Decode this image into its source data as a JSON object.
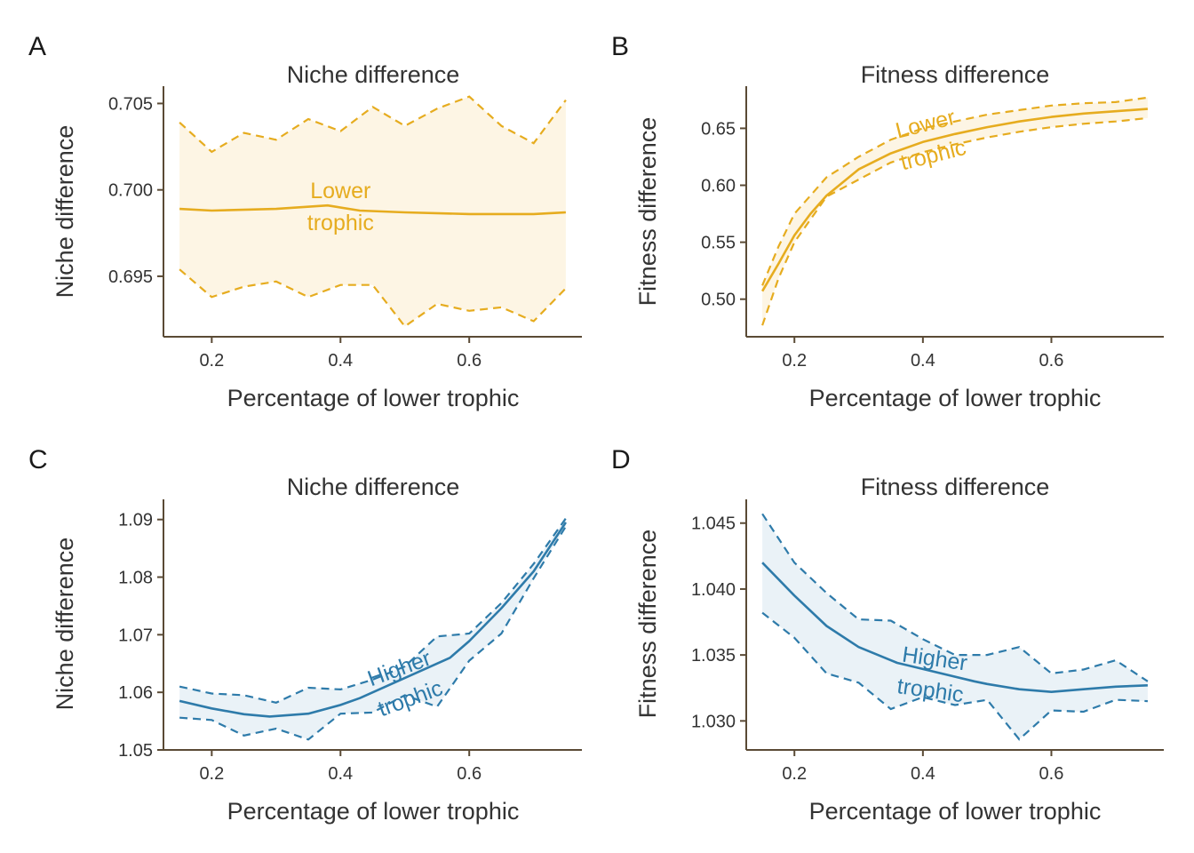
{
  "chart_data": [
    {
      "panel": "A",
      "type": "line",
      "title": "Niche difference",
      "xlabel": "Percentage of lower trophic",
      "ylabel": "Niche difference",
      "xlim": [
        0.125,
        0.775
      ],
      "ylim": [
        0.6915,
        0.706
      ],
      "xticks": [
        0.2,
        0.4,
        0.6
      ],
      "xtick_labels": [
        "0.2",
        "0.4",
        "0.6"
      ],
      "yticks": [
        0.695,
        0.7,
        0.705
      ],
      "ytick_labels": [
        "0.695",
        "0.700",
        "0.705"
      ],
      "color": "#E6AC1F",
      "fill_color": "#FDF5E4",
      "label_lines": [
        "Lower",
        "trophic"
      ],
      "label_at": [
        0.4,
        0.699
      ],
      "label_angle": 0,
      "mean": {
        "x": [
          0.15,
          0.2,
          0.3,
          0.38,
          0.43,
          0.5,
          0.6,
          0.7,
          0.75
        ],
        "y": [
          0.6989,
          0.6988,
          0.6989,
          0.6991,
          0.6988,
          0.6987,
          0.6986,
          0.6986,
          0.6987
        ]
      },
      "upper": {
        "x": [
          0.15,
          0.2,
          0.25,
          0.3,
          0.35,
          0.4,
          0.45,
          0.5,
          0.55,
          0.6,
          0.65,
          0.7,
          0.75
        ],
        "y": [
          0.7039,
          0.7022,
          0.7033,
          0.7029,
          0.7041,
          0.7034,
          0.7048,
          0.7037,
          0.7047,
          0.7054,
          0.7037,
          0.7027,
          0.7052
        ]
      },
      "lower": {
        "x": [
          0.15,
          0.2,
          0.25,
          0.3,
          0.35,
          0.4,
          0.45,
          0.5,
          0.55,
          0.6,
          0.65,
          0.7,
          0.75
        ],
        "y": [
          0.6954,
          0.6938,
          0.6944,
          0.6947,
          0.6938,
          0.6945,
          0.6945,
          0.6921,
          0.6934,
          0.693,
          0.6932,
          0.6924,
          0.6943
        ]
      }
    },
    {
      "panel": "B",
      "type": "line",
      "title": "Fitness difference",
      "xlabel": "Percentage of lower trophic",
      "ylabel": "Fitness difference",
      "xlim": [
        0.125,
        0.775
      ],
      "ylim": [
        0.467,
        0.687
      ],
      "xticks": [
        0.2,
        0.4,
        0.6
      ],
      "xtick_labels": [
        "0.2",
        "0.4",
        "0.6"
      ],
      "yticks": [
        0.5,
        0.55,
        0.6,
        0.65
      ],
      "ytick_labels": [
        "0.50",
        "0.55",
        "0.60",
        "0.65"
      ],
      "color": "#E6AC1F",
      "fill_color": "#FDF5E4",
      "label_lines": [
        "Lower",
        "trophic"
      ],
      "label_at": [
        0.41,
        0.64
      ],
      "label_angle": -14,
      "mean": {
        "x": [
          0.15,
          0.175,
          0.2,
          0.225,
          0.25,
          0.3,
          0.35,
          0.4,
          0.45,
          0.5,
          0.55,
          0.6,
          0.65,
          0.7,
          0.75
        ],
        "y": [
          0.507,
          0.531,
          0.556,
          0.575,
          0.591,
          0.614,
          0.628,
          0.638,
          0.645,
          0.651,
          0.656,
          0.66,
          0.663,
          0.665,
          0.667
        ]
      },
      "upper": {
        "x": [
          0.15,
          0.175,
          0.2,
          0.25,
          0.3,
          0.35,
          0.4,
          0.45,
          0.5,
          0.55,
          0.6,
          0.65,
          0.7,
          0.75
        ],
        "y": [
          0.512,
          0.546,
          0.575,
          0.607,
          0.625,
          0.64,
          0.65,
          0.656,
          0.662,
          0.666,
          0.67,
          0.672,
          0.673,
          0.677
        ]
      },
      "lower": {
        "x": [
          0.15,
          0.175,
          0.2,
          0.25,
          0.3,
          0.35,
          0.4,
          0.45,
          0.5,
          0.55,
          0.6,
          0.65,
          0.7,
          0.75
        ],
        "y": [
          0.477,
          0.518,
          0.55,
          0.59,
          0.605,
          0.62,
          0.629,
          0.636,
          0.642,
          0.647,
          0.651,
          0.654,
          0.656,
          0.659
        ]
      }
    },
    {
      "panel": "C",
      "type": "line",
      "title": "Niche difference",
      "xlabel": "Percentage of lower trophic",
      "ylabel": "Niche difference",
      "xlim": [
        0.125,
        0.775
      ],
      "ylim": [
        1.05,
        1.0935
      ],
      "xticks": [
        0.2,
        0.4,
        0.6
      ],
      "xtick_labels": [
        "0.2",
        "0.4",
        "0.6"
      ],
      "yticks": [
        1.05,
        1.06,
        1.07,
        1.08,
        1.09
      ],
      "ytick_labels": [
        "1.05",
        "1.06",
        "1.07",
        "1.08",
        "1.09"
      ],
      "color": "#2E7BAA",
      "fill_color": "#EAF2F7",
      "label_lines": [
        "Higher",
        "trophic"
      ],
      "label_at": [
        0.5,
        1.0615
      ],
      "label_angle": -20,
      "mean": {
        "x": [
          0.15,
          0.2,
          0.25,
          0.29,
          0.35,
          0.4,
          0.43,
          0.57,
          0.6,
          0.65,
          0.7,
          0.75
        ],
        "y": [
          1.0585,
          1.0572,
          1.0562,
          1.0558,
          1.0563,
          1.0578,
          1.059,
          1.066,
          1.0689,
          1.0746,
          1.081,
          1.0895
        ]
      },
      "upper": {
        "x": [
          0.15,
          0.2,
          0.25,
          0.3,
          0.35,
          0.4,
          0.45,
          0.5,
          0.55,
          0.6,
          0.65,
          0.7,
          0.75
        ],
        "y": [
          1.061,
          1.0598,
          1.0595,
          1.0582,
          1.0608,
          1.0605,
          1.0622,
          1.0645,
          1.0697,
          1.0702,
          1.0755,
          1.0823,
          1.0902
        ]
      },
      "lower": {
        "x": [
          0.15,
          0.2,
          0.25,
          0.3,
          0.35,
          0.4,
          0.45,
          0.5,
          0.55,
          0.6,
          0.65,
          0.7,
          0.75
        ],
        "y": [
          1.0556,
          1.0552,
          1.0525,
          1.0537,
          1.0518,
          1.0563,
          1.0565,
          1.0595,
          1.0575,
          1.0655,
          1.0702,
          1.0798,
          1.0888
        ]
      }
    },
    {
      "panel": "D",
      "type": "line",
      "title": "Fitness difference",
      "xlabel": "Percentage of lower trophic",
      "ylabel": "Fitness difference",
      "xlim": [
        0.125,
        0.775
      ],
      "ylim": [
        1.0278,
        1.0468
      ],
      "xticks": [
        0.2,
        0.4,
        0.6
      ],
      "xtick_labels": [
        "0.2",
        "0.4",
        "0.6"
      ],
      "yticks": [
        1.03,
        1.035,
        1.04,
        1.045
      ],
      "ytick_labels": [
        "1.030",
        "1.035",
        "1.040",
        "1.045"
      ],
      "color": "#2E7BAA",
      "fill_color": "#EAF2F7",
      "label_lines": [
        "Higher",
        "trophic"
      ],
      "label_at": [
        0.415,
        1.0335
      ],
      "label_angle": 8,
      "mean": {
        "x": [
          0.15,
          0.2,
          0.25,
          0.3,
          0.35,
          0.36,
          0.48,
          0.5,
          0.55,
          0.6,
          0.65,
          0.7,
          0.75
        ],
        "y": [
          1.042,
          1.0395,
          1.0372,
          1.0356,
          1.0346,
          1.0344,
          1.033,
          1.0328,
          1.0324,
          1.0322,
          1.0324,
          1.0326,
          1.0327
        ]
      },
      "upper": {
        "x": [
          0.15,
          0.2,
          0.25,
          0.3,
          0.35,
          0.4,
          0.45,
          0.5,
          0.55,
          0.6,
          0.65,
          0.7,
          0.75
        ],
        "y": [
          1.0457,
          1.042,
          1.0397,
          1.0377,
          1.0376,
          1.0362,
          1.035,
          1.035,
          1.0356,
          1.0336,
          1.0339,
          1.0346,
          1.033
        ]
      },
      "lower": {
        "x": [
          0.15,
          0.2,
          0.25,
          0.3,
          0.35,
          0.4,
          0.45,
          0.5,
          0.55,
          0.6,
          0.65,
          0.7,
          0.75
        ],
        "y": [
          1.0382,
          1.0363,
          1.0336,
          1.0329,
          1.0309,
          1.0318,
          1.0312,
          1.0316,
          1.0286,
          1.0308,
          1.0307,
          1.0316,
          1.0315
        ]
      }
    }
  ]
}
